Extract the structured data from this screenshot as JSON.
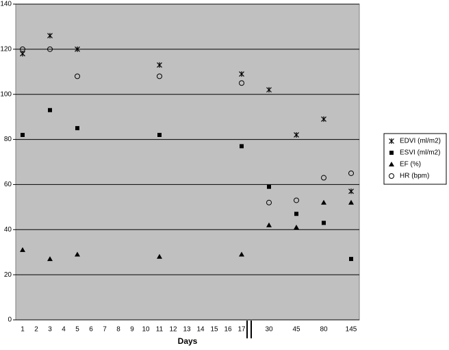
{
  "chart_data": {
    "type": "scatter",
    "x_label": "Days",
    "categories": [
      "1",
      "2",
      "3",
      "4",
      "5",
      "6",
      "7",
      "8",
      "9",
      "10",
      "11",
      "12",
      "13",
      "14",
      "15",
      "16",
      "17",
      "30",
      "45",
      "80",
      "145"
    ],
    "ylim": [
      0,
      140
    ],
    "yticks": [
      0,
      20,
      40,
      60,
      80,
      100,
      120,
      140
    ],
    "grid": true,
    "legend": "right",
    "series": [
      {
        "name": "EDVI (ml/m2)",
        "color": "#000000",
        "marker": "asterisk",
        "values": [
          118,
          null,
          126,
          null,
          120,
          null,
          null,
          null,
          null,
          null,
          113,
          null,
          null,
          null,
          null,
          null,
          109,
          102,
          82,
          89,
          57
        ]
      },
      {
        "name": "ESVI (ml/m2)",
        "color": "#000000",
        "marker": "square",
        "values": [
          82,
          null,
          93,
          null,
          85,
          null,
          null,
          null,
          null,
          null,
          82,
          null,
          null,
          null,
          null,
          null,
          77,
          59,
          47,
          43,
          27
        ]
      },
      {
        "name": "EF (%)",
        "color": "#000000",
        "marker": "triangle",
        "values": [
          31,
          null,
          27,
          null,
          29,
          null,
          null,
          null,
          null,
          null,
          28,
          null,
          null,
          null,
          null,
          null,
          29,
          42,
          41,
          52,
          52
        ]
      },
      {
        "name": "HR (bpm)",
        "color": "#000000",
        "marker": "circle",
        "values": [
          120,
          null,
          120,
          null,
          108,
          null,
          null,
          null,
          null,
          null,
          108,
          null,
          null,
          null,
          null,
          null,
          105,
          52,
          53,
          63,
          65
        ]
      }
    ]
  }
}
